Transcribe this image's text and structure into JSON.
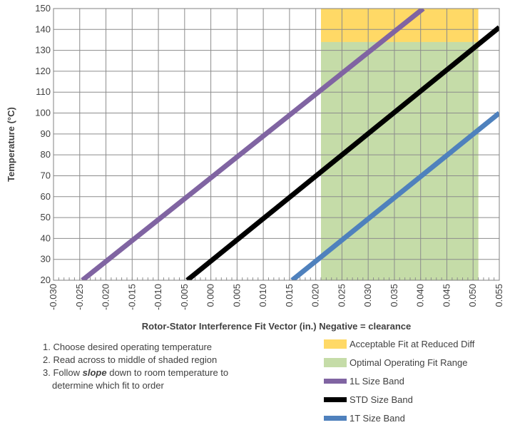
{
  "chart_data": {
    "type": "line",
    "title": "",
    "xlabel": "Rotor-Stator Interference Fit Vector (in.) Negative = clearance",
    "ylabel": "Temperature (°C)",
    "xlim": [
      -0.03,
      0.055
    ],
    "ylim": [
      20,
      150
    ],
    "x_ticks": [
      "-0.030",
      "-0.025",
      "-0.020",
      "-0.015",
      "-0.010",
      "-0.005",
      "0.000",
      "0.005",
      "0.010",
      "0.015",
      "0.020",
      "0.025",
      "0.030",
      "0.035",
      "0.040",
      "0.045",
      "0.050",
      "0.055"
    ],
    "y_ticks": [
      "20",
      "30",
      "40",
      "50",
      "60",
      "70",
      "80",
      "90",
      "100",
      "110",
      "120",
      "130",
      "140",
      "150"
    ],
    "grid": true,
    "regions": [
      {
        "name": "Acceptable Fit at Reduced Diff",
        "x": [
          0.021,
          0.051
        ],
        "y": [
          20,
          150
        ],
        "color": "#FFD966"
      },
      {
        "name": "Optimal Operating Fit Range",
        "x": [
          0.021,
          0.051
        ],
        "y": [
          20,
          134
        ],
        "color": "#C5DCA8"
      }
    ],
    "series": [
      {
        "name": "1L Size Band",
        "color": "#8064A2",
        "x": [
          -0.0245,
          0.0405
        ],
        "y": [
          20,
          150
        ]
      },
      {
        "name": "STD Size Band",
        "color": "#000000",
        "x": [
          -0.0045,
          0.055
        ],
        "y": [
          20,
          141
        ]
      },
      {
        "name": "1T Size Band",
        "color": "#4F81BD",
        "x": [
          0.0155,
          0.055
        ],
        "y": [
          20,
          100
        ]
      }
    ],
    "legend_position": "bottom-right"
  },
  "instructions": {
    "step1": "1. Choose desired operating temperature",
    "step2": "2. Read across to middle of shaded region",
    "step3_prefix": "3. Follow ",
    "step3_emph": "slope",
    "step3_suffix": " down to room temperature to",
    "step3_cont": "determine which fit to order"
  },
  "legend": {
    "acceptable": "Acceptable Fit at Reduced Diff",
    "optimal": "Optimal Operating Fit Range",
    "l1": "1L Size Band",
    "std": "STD Size Band",
    "t1": "1T Size Band"
  },
  "colors": {
    "acceptable": "#FFD966",
    "optimal": "#C5DCA8",
    "l1": "#8064A2",
    "std": "#000000",
    "t1": "#4F81BD"
  }
}
